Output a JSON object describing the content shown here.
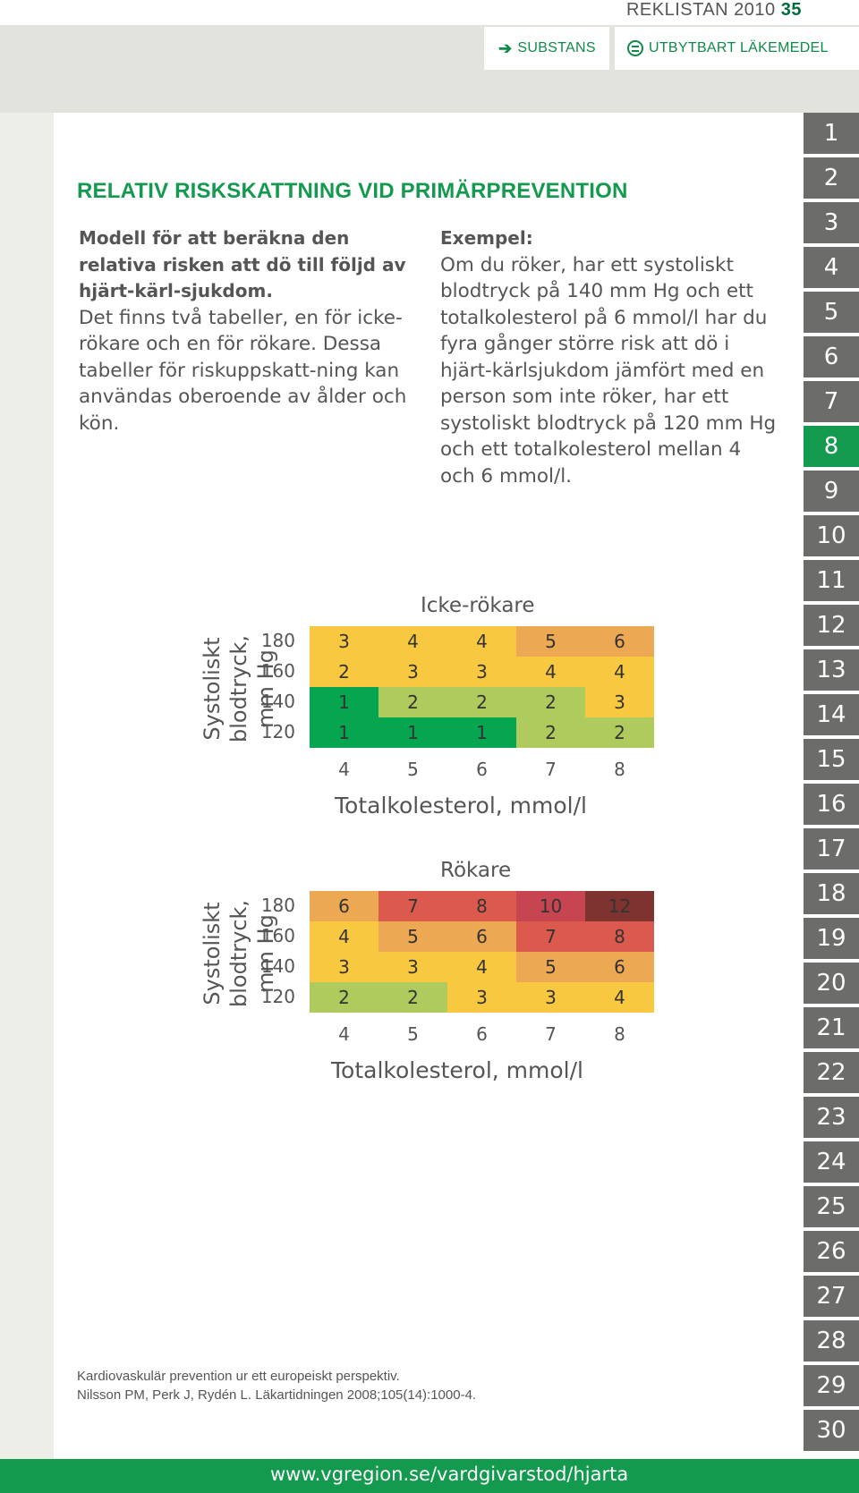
{
  "header": {
    "title": "REKLISTAN 2010",
    "page": "35"
  },
  "tabs": {
    "substans": "SUBSTANS",
    "utbytbart": "UTBYTBART LÄKEMEDEL"
  },
  "sidenav": [
    "1",
    "2",
    "3",
    "4",
    "5",
    "6",
    "7",
    "8",
    "9",
    "10",
    "11",
    "12",
    "13",
    "14",
    "15",
    "16",
    "17",
    "18",
    "19",
    "20",
    "21",
    "22",
    "23",
    "24",
    "25",
    "26",
    "27",
    "28",
    "29",
    "30"
  ],
  "sidenav_active": "8",
  "heading": "RELATIV RISKSKATTNING VID PRIMÄRPREVENTION",
  "intro": {
    "bold": "Modell för att beräkna den relativa risken att dö till följd av hjärt-kärl-sjukdom.",
    "text": "Det finns två tabeller, en för icke-rökare och en för rökare. Dessa tabeller för riskuppskatt-ning kan användas oberoende av ålder och kön."
  },
  "example": {
    "label": "Exempel:",
    "text": "Om du röker, har ett systoliskt blodtryck på 140 mm Hg och ett totalkolesterol på 6 mmol/l har du fyra gånger större risk att dö i hjärt-kärlsjukdom jämfört med en person som inte röker, har ett systoliskt blodtryck på 120 mm Hg och ett totalkolesterol mellan 4 och 6 mmol/l."
  },
  "tables": [
    {
      "title": "Icke-rökare",
      "ylabel_line1": "Systoliskt blodtryck,",
      "ylabel_line2": "mm Hg",
      "xlabel": "Totalkolesterol, mmol/l",
      "rows": [
        "180",
        "160",
        "140",
        "120"
      ],
      "cols": [
        "4",
        "5",
        "6",
        "7",
        "8"
      ],
      "values": [
        [
          "3",
          "4",
          "4",
          "5",
          "6"
        ],
        [
          "2",
          "3",
          "3",
          "4",
          "4"
        ],
        [
          "1",
          "2",
          "2",
          "2",
          "3"
        ],
        [
          "1",
          "1",
          "1",
          "2",
          "2"
        ]
      ],
      "colors": [
        [
          "#f8c940",
          "#f8c940",
          "#f8c940",
          "#eda854",
          "#eda854"
        ],
        [
          "#f8c940",
          "#f8c940",
          "#f8c940",
          "#f8c940",
          "#f8c940"
        ],
        [
          "#06a550",
          "#b0cb5d",
          "#b0cb5d",
          "#b0cb5d",
          "#f8c940"
        ],
        [
          "#06a550",
          "#06a550",
          "#06a550",
          "#b0cb5d",
          "#b0cb5d"
        ]
      ]
    },
    {
      "title": "Rökare",
      "ylabel_line1": "Systoliskt blodtryck,",
      "ylabel_line2": "mm Hg",
      "xlabel": "Totalkolesterol, mmol/l",
      "rows": [
        "180",
        "160",
        "140",
        "120"
      ],
      "cols": [
        "4",
        "5",
        "6",
        "7",
        "8"
      ],
      "values": [
        [
          "6",
          "7",
          "8",
          "10",
          "12"
        ],
        [
          "4",
          "5",
          "6",
          "7",
          "8"
        ],
        [
          "3",
          "3",
          "4",
          "5",
          "6"
        ],
        [
          "2",
          "2",
          "3",
          "3",
          "4"
        ]
      ],
      "colors": [
        [
          "#eda854",
          "#dc5a4d",
          "#dc5a4d",
          "#c74551",
          "#7e3330"
        ],
        [
          "#f8c940",
          "#eda854",
          "#eda854",
          "#dc5a4d",
          "#dc5a4d"
        ],
        [
          "#f8c940",
          "#f8c940",
          "#f8c940",
          "#eda854",
          "#eda854"
        ],
        [
          "#b0cb5d",
          "#b0cb5d",
          "#f8c940",
          "#f8c940",
          "#f8c940"
        ]
      ]
    }
  ],
  "references": {
    "line1": "Kardiovaskulär prevention ur ett europeiskt perspektiv.",
    "line2": "Nilsson PM, Perk J, Rydén L. Läkartidningen 2008;105(14):1000-4."
  },
  "footer": {
    "url": "www.vgregion.se/vardgivarstod/hjarta"
  },
  "colors": {
    "accent": "#139a4e",
    "nav_gray": "#6c6c6a",
    "band_gray": "#e3e3dd"
  }
}
